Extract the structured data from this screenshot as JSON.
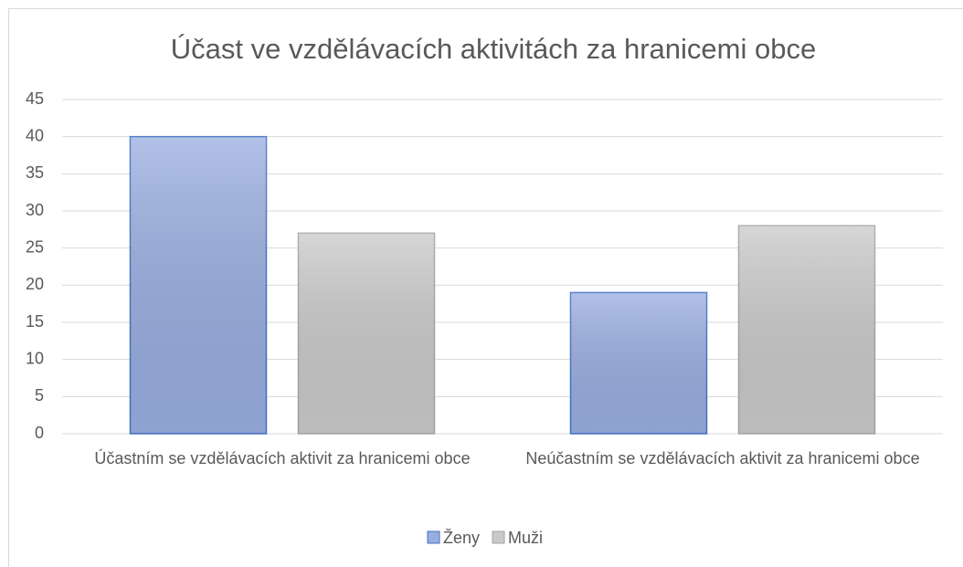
{
  "chart_data": {
    "type": "bar",
    "title": "Účast ve vzdělávacích aktivitách za hranicemi obce",
    "categories": [
      "Účastním se vzdělávacích aktivit za hranicemi obce",
      "Neúčastním se vzdělávacích aktivit za hranicemi obce"
    ],
    "series": [
      {
        "name": "Ženy",
        "color": "#98ade0",
        "values": [
          40,
          19
        ]
      },
      {
        "name": "Muži",
        "color": "#c9c9c9",
        "values": [
          27,
          28
        ]
      }
    ],
    "ylim": [
      0,
      45
    ],
    "yticks": [
      0,
      5,
      10,
      15,
      20,
      25,
      30,
      35,
      40,
      45
    ],
    "grid": true,
    "legend": "bottom"
  }
}
